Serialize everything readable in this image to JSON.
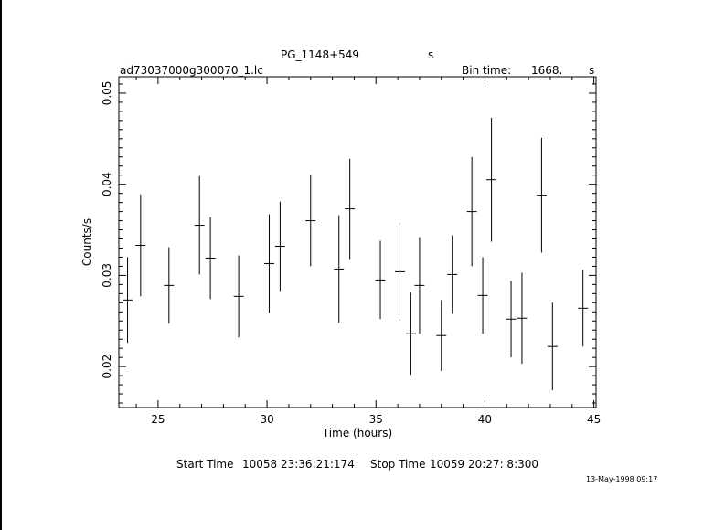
{
  "header": {
    "source": "PG_1148+549",
    "unit_marker": "s",
    "filename": "ad73037000g300070_1.lc",
    "bin_label": "Bin time:",
    "bin_value": "1668.",
    "bin_unit": "s"
  },
  "footer": {
    "start_label": "Start Time",
    "start_value": "10058 23:36:21:174",
    "stop_label": "Stop Time",
    "stop_value": "10059 20:27: 8:300",
    "stamp": "13-May-1998 09:17"
  },
  "chart_data": {
    "type": "scatter",
    "title": "",
    "xlabel": "Time (hours)",
    "ylabel": "Counts/s",
    "xlim": [
      23.2,
      45.1
    ],
    "ylim": [
      0.0155,
      0.0518
    ],
    "xticks": [
      25,
      30,
      35,
      40,
      45
    ],
    "yticks": [
      0.02,
      0.03,
      0.04,
      0.05
    ],
    "xtick_labels": [
      "25",
      "30",
      "35",
      "40",
      "45"
    ],
    "ytick_labels": [
      "0.02",
      "0.03",
      "0.04",
      "0.05"
    ],
    "grid": false,
    "points": [
      {
        "x": 23.6,
        "xerr": 0.23,
        "y": 0.0273,
        "yerr": 0.0047
      },
      {
        "x": 24.2,
        "xerr": 0.23,
        "y": 0.0333,
        "yerr": 0.0056
      },
      {
        "x": 25.5,
        "xerr": 0.23,
        "y": 0.0289,
        "yerr": 0.0042
      },
      {
        "x": 26.9,
        "xerr": 0.23,
        "y": 0.0355,
        "yerr": 0.0054
      },
      {
        "x": 27.4,
        "xerr": 0.23,
        "y": 0.0319,
        "yerr": 0.0045
      },
      {
        "x": 28.7,
        "xerr": 0.23,
        "y": 0.0277,
        "yerr": 0.0045
      },
      {
        "x": 30.1,
        "xerr": 0.23,
        "y": 0.0313,
        "yerr": 0.0054
      },
      {
        "x": 30.6,
        "xerr": 0.23,
        "y": 0.0332,
        "yerr": 0.0049
      },
      {
        "x": 32.0,
        "xerr": 0.23,
        "y": 0.036,
        "yerr": 0.005
      },
      {
        "x": 33.3,
        "xerr": 0.23,
        "y": 0.0307,
        "yerr": 0.0059
      },
      {
        "x": 33.8,
        "xerr": 0.23,
        "y": 0.0373,
        "yerr": 0.0055
      },
      {
        "x": 35.2,
        "xerr": 0.23,
        "y": 0.0295,
        "yerr": 0.0043
      },
      {
        "x": 36.1,
        "xerr": 0.23,
        "y": 0.0304,
        "yerr": 0.0054
      },
      {
        "x": 36.6,
        "xerr": 0.23,
        "y": 0.0236,
        "yerr": 0.0045
      },
      {
        "x": 37.0,
        "xerr": 0.23,
        "y": 0.0289,
        "yerr": 0.0053
      },
      {
        "x": 38.0,
        "xerr": 0.23,
        "y": 0.0234,
        "yerr": 0.0039
      },
      {
        "x": 38.5,
        "xerr": 0.23,
        "y": 0.0301,
        "yerr": 0.0043
      },
      {
        "x": 39.4,
        "xerr": 0.23,
        "y": 0.037,
        "yerr": 0.006
      },
      {
        "x": 39.9,
        "xerr": 0.23,
        "y": 0.0278,
        "yerr": 0.0042
      },
      {
        "x": 40.3,
        "xerr": 0.23,
        "y": 0.0405,
        "yerr": 0.0068
      },
      {
        "x": 41.2,
        "xerr": 0.23,
        "y": 0.0252,
        "yerr": 0.0042
      },
      {
        "x": 41.7,
        "xerr": 0.23,
        "y": 0.0253,
        "yerr": 0.005
      },
      {
        "x": 42.6,
        "xerr": 0.23,
        "y": 0.0388,
        "yerr": 0.0063
      },
      {
        "x": 43.1,
        "xerr": 0.23,
        "y": 0.0222,
        "yerr": 0.0048
      },
      {
        "x": 44.5,
        "xerr": 0.23,
        "y": 0.0264,
        "yerr": 0.0042
      }
    ]
  }
}
